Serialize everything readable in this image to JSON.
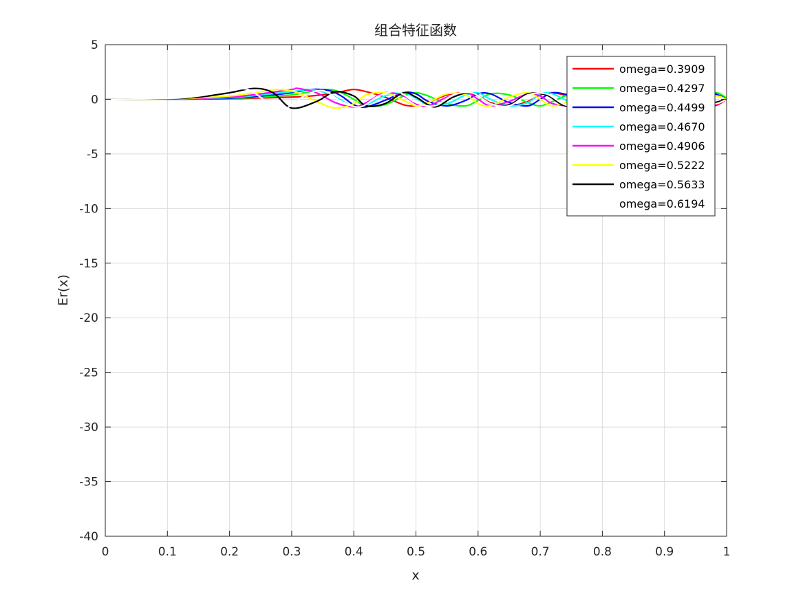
{
  "chart_data": {
    "type": "line",
    "title": "组合特征函数",
    "xlabel": "x",
    "ylabel": "Er(x)",
    "xlim": [
      0,
      1
    ],
    "ylim": [
      -40,
      5
    ],
    "xticks": [
      0,
      0.1,
      0.2,
      0.3,
      0.4,
      0.5,
      0.6,
      0.7,
      0.8,
      0.9,
      1
    ],
    "xtick_labels": [
      "0",
      "0.1",
      "0.2",
      "0.3",
      "0.4",
      "0.5",
      "0.6",
      "0.7",
      "0.8",
      "0.9",
      "1"
    ],
    "yticks": [
      5,
      0,
      -5,
      -10,
      -15,
      -20,
      -25,
      -30,
      -35,
      -40
    ],
    "ytick_labels": [
      "5",
      "0",
      "-5",
      "-10",
      "-15",
      "-20",
      "-25",
      "-30",
      "-35",
      "-40"
    ],
    "grid": true,
    "legend_position": "top-right",
    "series": [
      {
        "name": "omega=0.3909",
        "color": "#ff0000",
        "x": [
          0,
          0.1,
          0.2,
          0.25,
          0.3,
          0.33,
          0.36,
          0.38,
          0.4,
          0.42,
          0.45,
          0.48,
          0.5,
          0.52,
          0.55,
          0.58,
          0.6,
          0.62,
          0.65,
          0.68,
          0.7,
          0.72,
          0.75,
          0.78,
          0.8,
          0.82,
          0.85,
          0.88,
          0.9,
          0.92,
          0.95,
          0.98,
          1.0
        ],
        "y": [
          0,
          0.01,
          0.05,
          0.12,
          0.2,
          0.3,
          0.5,
          0.7,
          0.9,
          0.7,
          0.2,
          -0.5,
          -0.6,
          -0.3,
          0.4,
          0.6,
          0.3,
          -0.3,
          -0.6,
          -0.2,
          0.4,
          0.6,
          0.2,
          -0.5,
          -0.6,
          -0.1,
          0.5,
          0.5,
          0.0,
          -0.5,
          -0.4,
          -0.6,
          0.0
        ]
      },
      {
        "name": "omega=0.4297",
        "color": "#00ff00",
        "x": [
          0,
          0.1,
          0.2,
          0.25,
          0.3,
          0.33,
          0.36,
          0.38,
          0.4,
          0.42,
          0.45,
          0.48,
          0.5,
          0.52,
          0.55,
          0.58,
          0.6,
          0.62,
          0.65,
          0.68,
          0.7,
          0.72,
          0.75,
          0.78,
          0.8,
          0.82,
          0.85,
          0.88,
          0.9,
          0.92,
          0.95,
          0.98,
          1.0
        ],
        "y": [
          0,
          0.01,
          0.08,
          0.2,
          0.4,
          0.7,
          0.9,
          0.6,
          0.0,
          -0.6,
          -0.5,
          0.3,
          0.6,
          0.3,
          -0.4,
          -0.6,
          -0.1,
          0.5,
          0.4,
          -0.3,
          -0.6,
          -0.2,
          0.5,
          0.5,
          -0.1,
          -0.6,
          -0.3,
          0.4,
          0.6,
          0.2,
          -0.5,
          0.6,
          0.1
        ]
      },
      {
        "name": "omega=0.4499",
        "color": "#0000ff",
        "x": [
          0,
          0.1,
          0.2,
          0.25,
          0.3,
          0.33,
          0.36,
          0.38,
          0.4,
          0.42,
          0.45,
          0.48,
          0.5,
          0.52,
          0.55,
          0.58,
          0.6,
          0.62,
          0.65,
          0.68,
          0.7,
          0.72,
          0.75,
          0.78,
          0.8,
          0.82,
          0.85,
          0.88,
          0.9,
          0.92,
          0.95,
          0.98,
          1.0
        ],
        "y": [
          0,
          0.01,
          0.1,
          0.3,
          0.6,
          0.9,
          0.8,
          0.3,
          -0.5,
          -0.7,
          -0.1,
          0.6,
          0.5,
          -0.2,
          -0.6,
          -0.1,
          0.5,
          0.5,
          -0.3,
          -0.6,
          0.0,
          0.6,
          0.3,
          -0.5,
          -0.5,
          0.1,
          0.6,
          0.2,
          -0.5,
          -0.4,
          0.3,
          0.5,
          0.0
        ]
      },
      {
        "name": "omega=0.4670",
        "color": "#00ffff",
        "x": [
          0,
          0.1,
          0.2,
          0.25,
          0.3,
          0.33,
          0.36,
          0.38,
          0.4,
          0.42,
          0.45,
          0.48,
          0.5,
          0.52,
          0.55,
          0.58,
          0.6,
          0.62,
          0.65,
          0.68,
          0.7,
          0.72,
          0.75,
          0.78,
          0.8,
          0.82,
          0.85,
          0.88,
          0.9,
          0.92,
          0.95,
          0.98,
          1.0
        ],
        "y": [
          0,
          0.02,
          0.15,
          0.4,
          0.7,
          0.9,
          0.5,
          -0.1,
          -0.7,
          -0.5,
          0.3,
          0.6,
          0.1,
          -0.5,
          -0.4,
          0.4,
          0.6,
          0.0,
          -0.6,
          -0.3,
          0.5,
          0.5,
          -0.3,
          -0.6,
          0.1,
          0.6,
          0.1,
          -0.5,
          -0.4,
          0.4,
          0.5,
          -0.3,
          0.0
        ]
      },
      {
        "name": "omega=0.4906",
        "color": "#ff00ff",
        "x": [
          0,
          0.1,
          0.2,
          0.25,
          0.3,
          0.31,
          0.34,
          0.37,
          0.4,
          0.42,
          0.45,
          0.48,
          0.5,
          0.52,
          0.55,
          0.58,
          0.6,
          0.62,
          0.65,
          0.68,
          0.7,
          0.72,
          0.75,
          0.78,
          0.8,
          0.82,
          0.85,
          0.88,
          0.9,
          0.92,
          0.95,
          0.98,
          1.0
        ],
        "y": [
          0,
          0.02,
          0.2,
          0.5,
          0.9,
          1.0,
          0.6,
          -0.3,
          -0.7,
          -0.3,
          0.6,
          0.3,
          -0.4,
          -0.6,
          0.2,
          0.6,
          0.0,
          -0.6,
          -0.2,
          0.5,
          0.3,
          -0.4,
          -0.5,
          0.3,
          0.6,
          -0.1,
          -0.6,
          0.1,
          0.6,
          0.1,
          -0.6,
          -0.5,
          0.0
        ]
      },
      {
        "name": "omega=0.5222",
        "color": "#ffff00",
        "x": [
          0,
          0.1,
          0.2,
          0.25,
          0.28,
          0.31,
          0.34,
          0.37,
          0.4,
          0.42,
          0.45,
          0.48,
          0.5,
          0.52,
          0.55,
          0.58,
          0.6,
          0.62,
          0.65,
          0.68,
          0.7,
          0.72,
          0.75,
          0.78,
          0.8,
          0.82,
          0.85,
          0.88,
          0.9,
          0.92,
          0.95,
          0.98,
          1.0
        ],
        "y": [
          0,
          0.03,
          0.3,
          0.7,
          0.9,
          0.6,
          -0.2,
          -0.8,
          -0.4,
          0.4,
          0.6,
          -0.1,
          -0.6,
          -0.3,
          0.5,
          0.4,
          -0.4,
          -0.6,
          0.2,
          0.6,
          0.0,
          -0.6,
          -0.1,
          0.6,
          0.2,
          -0.5,
          -0.4,
          0.5,
          0.4,
          -0.4,
          -0.5,
          0.3,
          0.0
        ]
      },
      {
        "name": "omega=0.5633",
        "color": "#000000",
        "x": [
          0,
          0.1,
          0.15,
          0.2,
          0.24,
          0.27,
          0.3,
          0.34,
          0.37,
          0.4,
          0.42,
          0.45,
          0.48,
          0.5,
          0.53,
          0.56,
          0.59,
          0.62,
          0.65,
          0.68,
          0.71,
          0.74,
          0.77,
          0.8,
          0.83,
          0.86,
          0.89,
          0.92,
          0.95,
          0.98,
          1.0
        ],
        "y": [
          0,
          0.05,
          0.2,
          0.6,
          1.0,
          0.6,
          -0.8,
          -0.2,
          0.7,
          0.3,
          -0.6,
          -0.4,
          0.6,
          0.2,
          -0.7,
          0.2,
          0.6,
          -0.4,
          -0.5,
          0.5,
          0.4,
          -0.6,
          -0.2,
          0.6,
          0.1,
          -0.6,
          0.3,
          0.5,
          -0.5,
          -0.3,
          0.0
        ]
      },
      {
        "name": "omega=0.6194",
        "color": "#ffffff",
        "x": [
          0,
          0.1,
          0.15,
          0.2,
          0.23,
          0.26,
          0.29,
          0.32,
          0.35,
          0.38,
          0.41,
          0.44,
          0.47,
          0.5,
          0.53,
          0.56,
          0.59,
          0.62,
          0.65,
          0.68,
          0.71,
          0.74,
          0.77,
          0.8,
          0.83,
          0.86,
          0.89,
          0.92,
          0.95,
          0.98,
          1.0
        ],
        "y": [
          0,
          0.08,
          0.3,
          0.8,
          0.9,
          -0.2,
          -0.8,
          0.3,
          0.8,
          -0.2,
          -0.7,
          0.3,
          0.7,
          -0.3,
          -0.6,
          0.4,
          0.6,
          -0.4,
          -0.6,
          0.4,
          0.5,
          -0.5,
          -0.5,
          0.5,
          0.4,
          -0.5,
          -0.3,
          0.5,
          0.2,
          -0.4,
          0.0
        ]
      }
    ]
  }
}
